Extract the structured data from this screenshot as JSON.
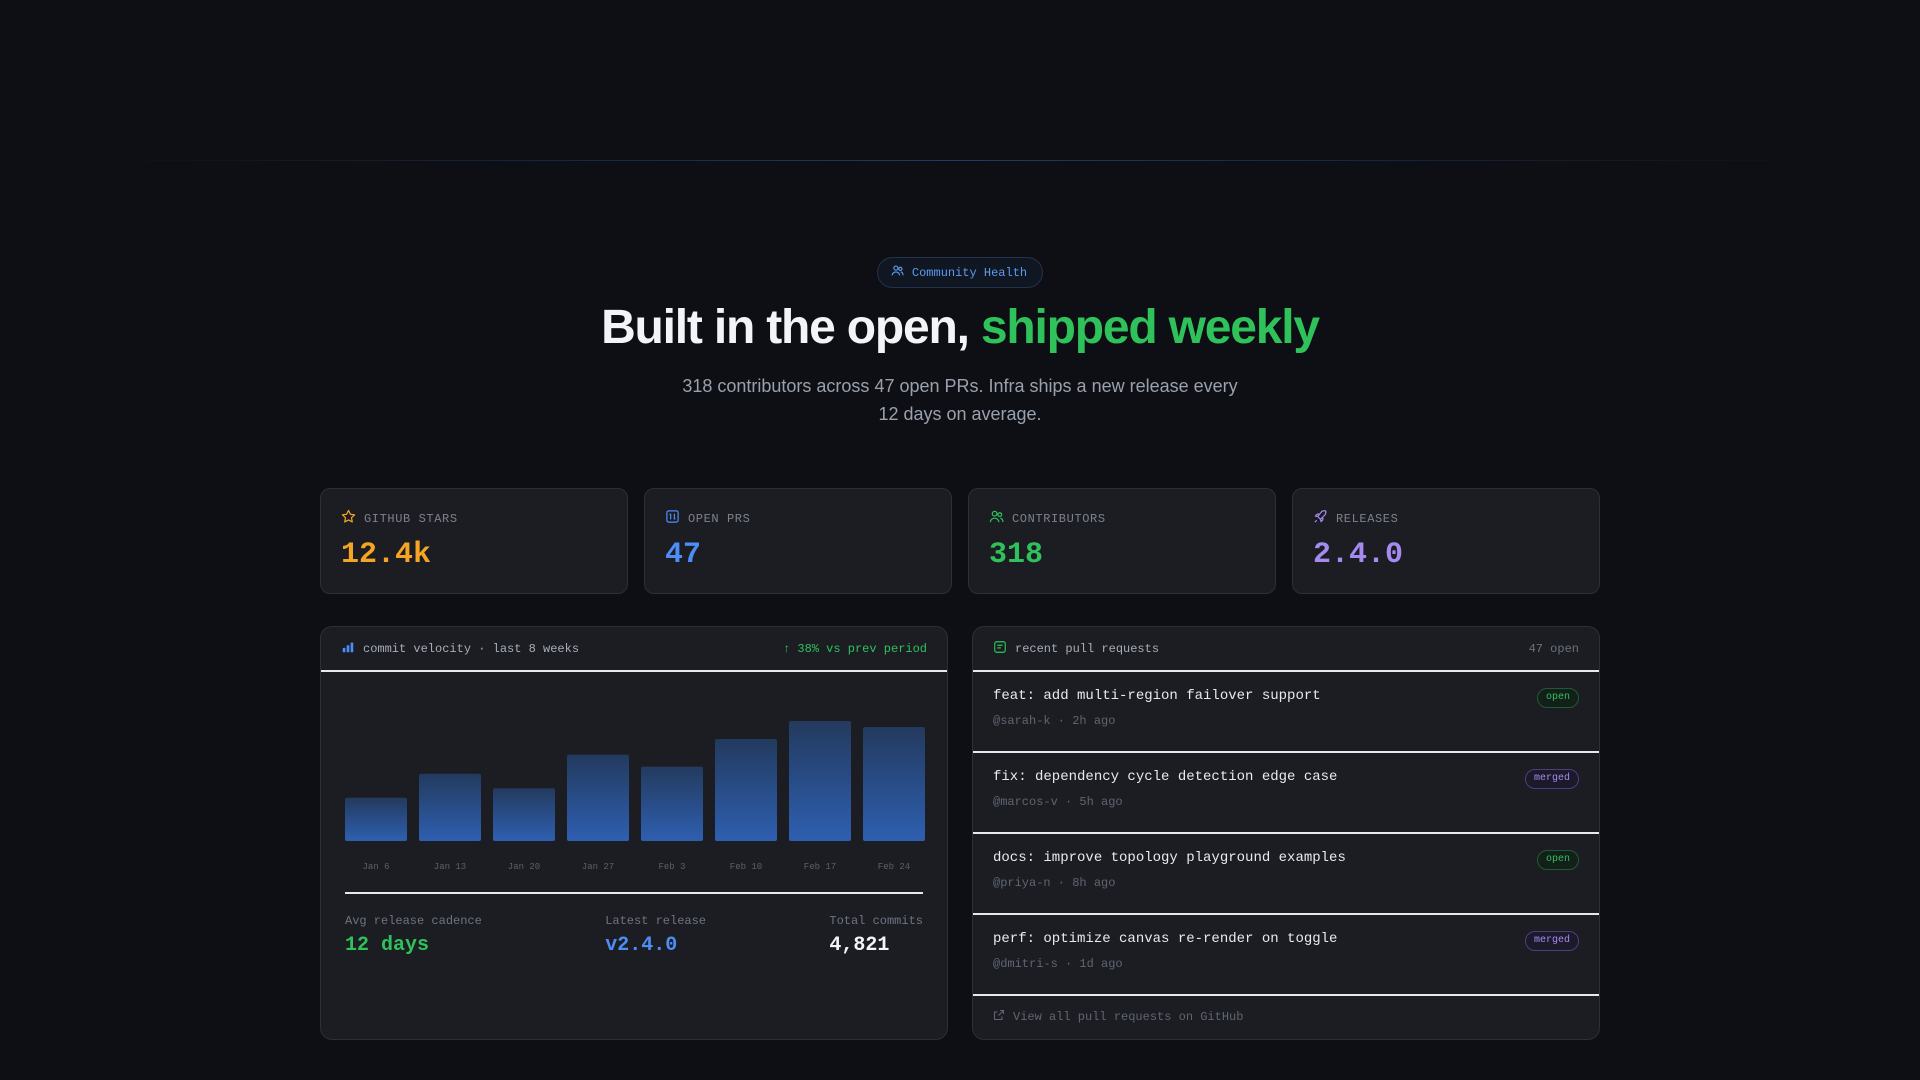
{
  "hero": {
    "badge": "Community Health",
    "title_main": "Built in the open, ",
    "title_accent": "shipped weekly",
    "subtitle": "318 contributors across 47 open PRs. Infra ships a new release every 12 days on average."
  },
  "stats": [
    {
      "label": "GITHUB STARS",
      "value": "12.4k",
      "icon": "star-icon",
      "color": "#f5a524"
    },
    {
      "label": "OPEN PRS",
      "value": "47",
      "icon": "pull-request-icon",
      "color": "#4c8ef5"
    },
    {
      "label": "CONTRIBUTORS",
      "value": "318",
      "icon": "users-icon",
      "color": "#2fc25b"
    },
    {
      "label": "RELEASES",
      "value": "2.4.0",
      "icon": "rocket-icon",
      "color": "#a58bf0"
    }
  ],
  "velocity": {
    "title": "commit velocity · last 8 weeks",
    "trend": "↑ 38% vs prev period",
    "metrics": {
      "cadence_label": "Avg release cadence",
      "cadence_value": "12 days",
      "latest_label": "Latest release",
      "latest_value": "v2.4.0",
      "commits_label": "Total commits",
      "commits_value": "4,821"
    }
  },
  "chart_data": {
    "type": "bar",
    "categories": [
      "Jan 6",
      "Jan 13",
      "Jan 20",
      "Jan 27",
      "Feb 3",
      "Feb 10",
      "Feb 17",
      "Feb 24"
    ],
    "values": [
      36,
      56,
      44,
      72,
      62,
      85,
      100,
      95
    ],
    "ylim": [
      0,
      100
    ],
    "grid": false,
    "title": "",
    "xlabel": "",
    "ylabel": ""
  },
  "pull_requests": {
    "title": "recent pull requests",
    "count": "47 open",
    "items": [
      {
        "title": "feat: add multi-region failover support",
        "meta": "@sarah-k · 2h ago",
        "status": "open"
      },
      {
        "title": "fix: dependency cycle detection edge case",
        "meta": "@marcos-v · 5h ago",
        "status": "merged"
      },
      {
        "title": "docs: improve topology playground examples",
        "meta": "@priya-n · 8h ago",
        "status": "open"
      },
      {
        "title": "perf: optimize canvas re-render on toggle",
        "meta": "@dmitri-s · 1d ago",
        "status": "merged"
      }
    ],
    "footer": "View all pull requests on GitHub"
  }
}
